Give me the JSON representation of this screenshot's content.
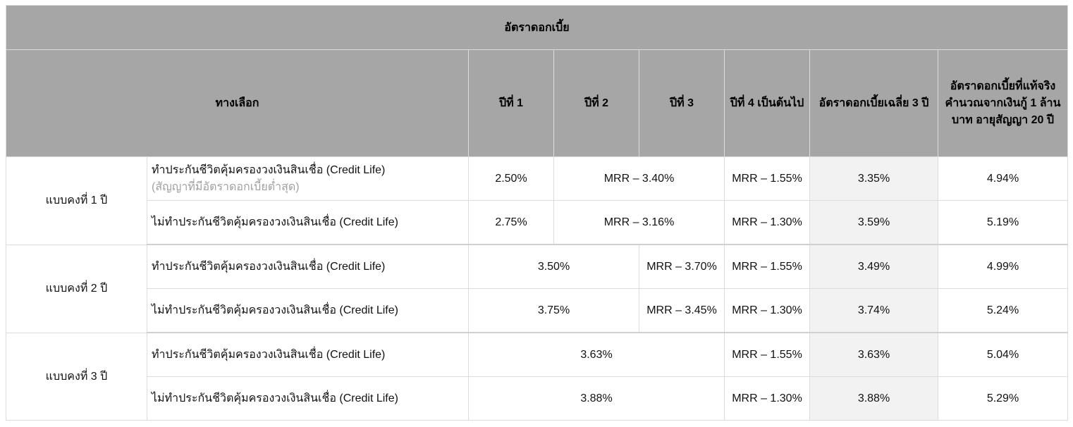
{
  "table": {
    "title": "อัตราดอกเบี้ย",
    "headers": {
      "option": "ทางเลือก",
      "year1": "ปีที่ 1",
      "year2": "ปีที่ 2",
      "year3": "ปีที่ 3",
      "year4": "ปีที่ 4 เป็นต้นไป",
      "avg3": "อัตราดอกเบี้ยเฉลี่ย 3 ปี",
      "effective": "อัตราดอกเบี้ยที่แท้จริง คำนวณจากเงินกู้ 1 ล้านบาท อายุสัญญา 20 ปี"
    },
    "plans": [
      {
        "name": "แบบคงที่ 1 ปี",
        "rows": [
          {
            "option": "ทำประกันชีวิตคุ้มครองวงเงินสินเชื่อ (Credit Life)",
            "note": "(สัญญาที่มีอัตราดอกเบี้ยต่ำสุด)",
            "year1": "2.50%",
            "year2_3": "MRR – 3.40%",
            "year4": "MRR – 1.55%",
            "avg3": "3.35%",
            "effective": "4.94%"
          },
          {
            "option": "ไม่ทำประกันชีวิตคุ้มครองวงเงินสินเชื่อ (Credit Life)",
            "year1": "2.75%",
            "year2_3": "MRR – 3.16%",
            "year4": "MRR – 1.30%",
            "avg3": "3.59%",
            "effective": "5.19%"
          }
        ]
      },
      {
        "name": "แบบคงที่ 2 ปี",
        "rows": [
          {
            "option": "ทำประกันชีวิตคุ้มครองวงเงินสินเชื่อ (Credit Life)",
            "year1_2": "3.50%",
            "year3": "MRR – 3.70%",
            "year4": "MRR – 1.55%",
            "avg3": "3.49%",
            "effective": "4.99%"
          },
          {
            "option": "ไม่ทำประกันชีวิตคุ้มครองวงเงินสินเชื่อ (Credit Life)",
            "year1_2": "3.75%",
            "year3": "MRR – 3.45%",
            "year4": "MRR – 1.30%",
            "avg3": "3.74%",
            "effective": "5.24%"
          }
        ]
      },
      {
        "name": "แบบคงที่ 3 ปี",
        "rows": [
          {
            "option": "ทำประกันชีวิตคุ้มครองวงเงินสินเชื่อ (Credit Life)",
            "year1_3": "3.63%",
            "year4": "MRR – 1.55%",
            "avg3": "3.63%",
            "effective": "5.04%"
          },
          {
            "option": "ไม่ทำประกันชีวิตคุ้มครองวงเงินสินเชื่อ (Credit Life)",
            "year1_3": "3.88%",
            "year4": "MRR – 1.30%",
            "avg3": "3.88%",
            "effective": "5.29%"
          }
        ]
      }
    ]
  }
}
